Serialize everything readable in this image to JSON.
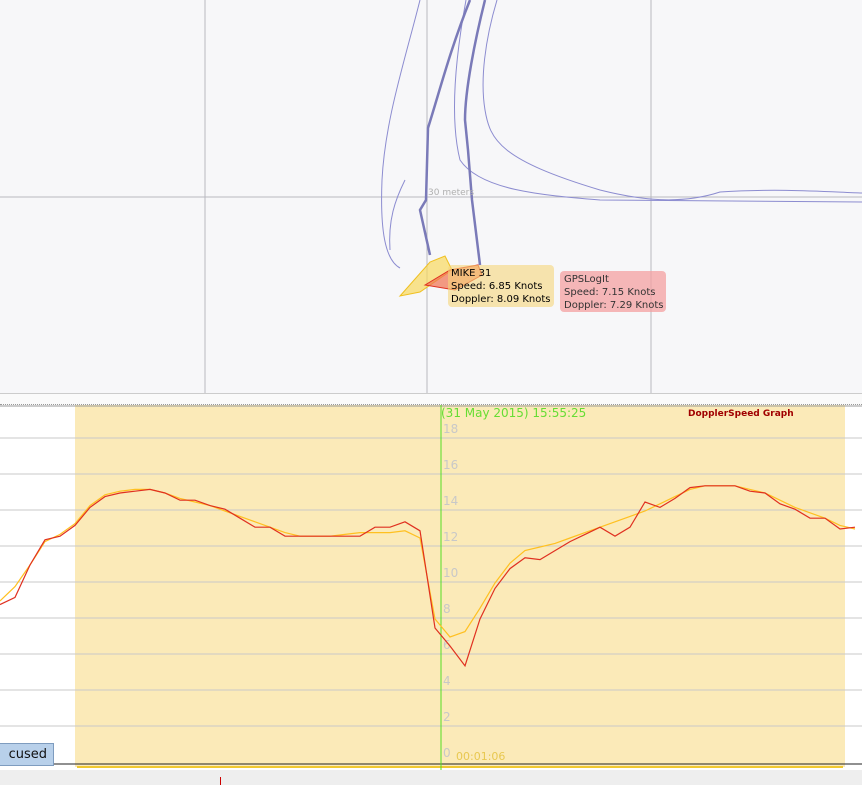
{
  "map": {
    "scale_label": "30 meters",
    "tooltips": [
      {
        "name": "MIKE 31",
        "speed": "Speed: 6.85 Knots",
        "doppler": "Doppler: 8.09 Knots",
        "color": "#f5d67a"
      },
      {
        "name": "GPSLogIt",
        "speed": "Speed: 7.15 Knots",
        "doppler": "Doppler: 7.29 Knots",
        "color": "#f4a0a0"
      }
    ]
  },
  "graph": {
    "title": "DopplerSpeed Graph",
    "cursor_time": "(31 May 2015) 15:55:25",
    "span_label": "00:01:06",
    "focus_button": "cused"
  },
  "chart_data": {
    "type": "line",
    "title": "DopplerSpeed Graph",
    "yticks": [
      0,
      2,
      4,
      6,
      8,
      10,
      12,
      14,
      16,
      18
    ],
    "ylim": [
      0,
      18
    ],
    "grid": true,
    "series": [
      {
        "color": "#e03020",
        "values": [
          8.8,
          9.2,
          11.0,
          12.4,
          12.6,
          13.2,
          14.2,
          14.8,
          15.0,
          15.1,
          15.2,
          15.0,
          14.6,
          14.6,
          14.3,
          14.1,
          13.6,
          13.1,
          13.1,
          12.6,
          12.6,
          12.6,
          12.6,
          12.6,
          12.6,
          13.1,
          13.1,
          13.4,
          12.9,
          7.5,
          6.5,
          5.4,
          8.0,
          9.7,
          10.8,
          11.4,
          11.3,
          11.8,
          12.3,
          12.7,
          13.1,
          12.6,
          13.1,
          14.5,
          14.2,
          14.7,
          15.3,
          15.4,
          15.4,
          15.4,
          15.1,
          15.0,
          14.4,
          14.1,
          13.6,
          13.6,
          13.0,
          13.1
        ]
      },
      {
        "color": "#ffc020",
        "values": [
          9.0,
          9.8,
          11.0,
          12.3,
          12.7,
          13.3,
          14.3,
          14.9,
          15.1,
          15.2,
          15.2,
          15.0,
          14.7,
          14.5,
          14.3,
          14.0,
          13.7,
          13.4,
          13.1,
          12.8,
          12.6,
          12.6,
          12.6,
          12.7,
          12.8,
          12.8,
          12.8,
          12.9,
          12.5,
          8.0,
          7.0,
          7.3,
          8.6,
          10.0,
          11.1,
          11.8,
          12.0,
          12.2,
          12.5,
          12.8,
          13.1,
          13.4,
          13.7,
          14.0,
          14.4,
          14.8,
          15.2,
          15.4,
          15.4,
          15.4,
          15.2,
          15.0,
          14.6,
          14.2,
          13.9,
          13.6,
          13.2,
          13.0
        ]
      }
    ],
    "highlight_color": "#fbeab8",
    "cursor_color": "#55dd22"
  }
}
